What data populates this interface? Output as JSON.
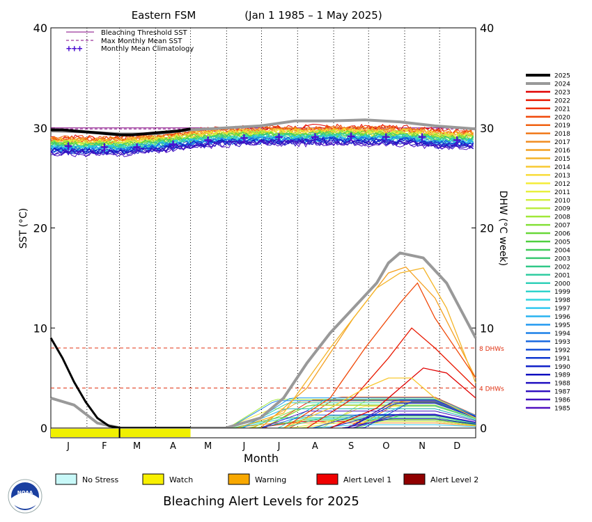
{
  "chart_data": {
    "type": "line",
    "title": "Eastern FSM",
    "date_range": "(Jan 1 1985 – 1 May 2025)",
    "xlabel": "Month",
    "ylabel_left": "SST (°C)",
    "ylabel_right": "DHW (°C week)",
    "ylim": [
      0,
      40
    ],
    "y_ticks": [
      "0",
      "10",
      "20",
      "30",
      "40"
    ],
    "x_ticks": [
      "J",
      "F",
      "M",
      "A",
      "M",
      "J",
      "J",
      "A",
      "S",
      "O",
      "N",
      "D"
    ],
    "legend_top": [
      {
        "label": "Bleaching Threshold SST",
        "color": "#800080",
        "style": "solid"
      },
      {
        "label": "Max Monthly Mean SST",
        "color": "#800080",
        "style": "dashed"
      },
      {
        "label": "Monthly Mean Climatology",
        "color": "#4b0fd0",
        "style": "plus"
      }
    ],
    "dhw_lines": [
      {
        "label": "8 DHWs",
        "value": 8,
        "color": "#e03010"
      },
      {
        "label": "4 DHWs",
        "value": 4,
        "color": "#e03010"
      }
    ],
    "bleaching_threshold": 30.0,
    "max_monthly_mean": 29.9,
    "climatology": [
      {
        "month": "J",
        "value": 28.2
      },
      {
        "month": "F",
        "value": 28.1
      },
      {
        "month": "M",
        "value": 28.1
      },
      {
        "month": "A",
        "value": 28.4
      },
      {
        "month": "M",
        "value": 28.8
      },
      {
        "month": "J",
        "value": 29.0
      },
      {
        "month": "J",
        "value": 29.1
      },
      {
        "month": "A",
        "value": 29.1
      },
      {
        "month": "S",
        "value": 29.2
      },
      {
        "month": "O",
        "value": 29.1
      },
      {
        "month": "N",
        "value": 29.1
      },
      {
        "month": "D",
        "value": 28.8
      }
    ],
    "series_years": [
      "2025",
      "2024",
      "2023",
      "2022",
      "2021",
      "2020",
      "2019",
      "2018",
      "2017",
      "2016",
      "2015",
      "2014",
      "2013",
      "2012",
      "2011",
      "2010",
      "2009",
      "2008",
      "2007",
      "2006",
      "2005",
      "2004",
      "2003",
      "2002",
      "2001",
      "2000",
      "1999",
      "1998",
      "1997",
      "1996",
      "1995",
      "1994",
      "1993",
      "1992",
      "1991",
      "1990",
      "1989",
      "1988",
      "1987",
      "1986",
      "1985"
    ],
    "series_colors": {
      "2025": "#000000",
      "2024": "#999999",
      "palette_2023_to_1985": [
        "#e00000",
        "#e81800",
        "#f03000",
        "#f04808",
        "#f06010",
        "#f07818",
        "#f08c20",
        "#f4a020",
        "#f4b428",
        "#f8c830",
        "#f8dc38",
        "#f4ec38",
        "#e8f040",
        "#d4f040",
        "#bcec40",
        "#a0e838",
        "#84e038",
        "#68d838",
        "#50d040",
        "#40cc58",
        "#38c870",
        "#30c888",
        "#30cca0",
        "#30d0b8",
        "#30d4cc",
        "#30d4e0",
        "#30c8f0",
        "#28b4f0",
        "#2098f0",
        "#1c80e8",
        "#1868e0",
        "#1450d8",
        "#1038d0",
        "#1020c8",
        "#1010c0",
        "#2010c0",
        "#3010c0",
        "#4010c0",
        "#5010c0"
      ]
    },
    "sst_2025": {
      "days": [
        0,
        10,
        20,
        30,
        40,
        50,
        60,
        70,
        80,
        90,
        100,
        110,
        120
      ],
      "values": [
        29.8,
        29.8,
        29.7,
        29.6,
        29.5,
        29.4,
        29.3,
        29.3,
        29.4,
        29.5,
        29.6,
        29.7,
        29.9
      ]
    },
    "sst_2024": {
      "days": [
        0,
        30,
        60,
        90,
        120,
        150,
        180,
        210,
        240,
        270,
        300,
        330,
        365
      ],
      "values": [
        29.7,
        29.6,
        29.4,
        29.4,
        29.8,
        30.0,
        30.2,
        30.7,
        30.7,
        30.8,
        30.6,
        30.2,
        29.9
      ]
    },
    "dhw_2025": {
      "days": [
        0,
        10,
        20,
        30,
        40,
        50,
        60,
        70,
        80,
        90,
        100,
        110,
        120
      ],
      "values": [
        9.0,
        7.0,
        4.6,
        2.6,
        1.0,
        0.2,
        0,
        0,
        0,
        0,
        0,
        0,
        0
      ]
    },
    "dhw_2024": {
      "days": [
        0,
        20,
        40,
        60,
        150,
        180,
        200,
        220,
        240,
        260,
        280,
        290,
        300,
        320,
        340,
        365
      ],
      "values": [
        3.0,
        2.3,
        0.5,
        0,
        0,
        1.0,
        3.0,
        6.5,
        9.5,
        12.0,
        14.5,
        16.5,
        17.5,
        17.0,
        14.5,
        9.0
      ]
    },
    "dhw_notable": [
      {
        "year": "2016",
        "days": [
          0,
          180,
          220,
          260,
          290,
          305,
          330,
          365
        ],
        "values": [
          0,
          0,
          4,
          11,
          15.5,
          16.1,
          13,
          5
        ]
      },
      {
        "year": "2015",
        "days": [
          160,
          200,
          240,
          280,
          300,
          320,
          340,
          365
        ],
        "values": [
          0,
          1.5,
          8,
          14,
          15.5,
          16.0,
          12,
          4.5
        ]
      },
      {
        "year": "2020",
        "days": [
          200,
          240,
          270,
          300,
          315,
          330,
          365
        ],
        "values": [
          0,
          3,
          8,
          12.5,
          14.5,
          11,
          5
        ]
      },
      {
        "year": "2022",
        "days": [
          220,
          260,
          290,
          310,
          330,
          365
        ],
        "values": [
          0,
          3,
          7,
          10,
          8,
          4
        ]
      },
      {
        "year": "2023",
        "days": [
          240,
          280,
          300,
          320,
          340,
          365
        ],
        "values": [
          0,
          2,
          4,
          6,
          5.5,
          3
        ]
      },
      {
        "year": "2014",
        "days": [
          200,
          240,
          270,
          290,
          310,
          330,
          365
        ],
        "values": [
          0,
          2,
          4,
          5,
          5,
          3,
          1
        ]
      }
    ],
    "alert_bar_2025": [
      {
        "from_day": 0,
        "to_day": 120,
        "level": "Watch",
        "color": "#f0f000"
      }
    ]
  },
  "bottom_legend": [
    {
      "label": "No Stress",
      "color": "#c8f8f8"
    },
    {
      "label": "Watch",
      "color": "#f8f000"
    },
    {
      "label": "Warning",
      "color": "#f8a800"
    },
    {
      "label": "Alert Level 1",
      "color": "#f00000"
    },
    {
      "label": "Alert Level 2",
      "color": "#900000"
    }
  ],
  "footer_title": "Bleaching Alert Levels for 2025",
  "logo_text": "NOAA"
}
